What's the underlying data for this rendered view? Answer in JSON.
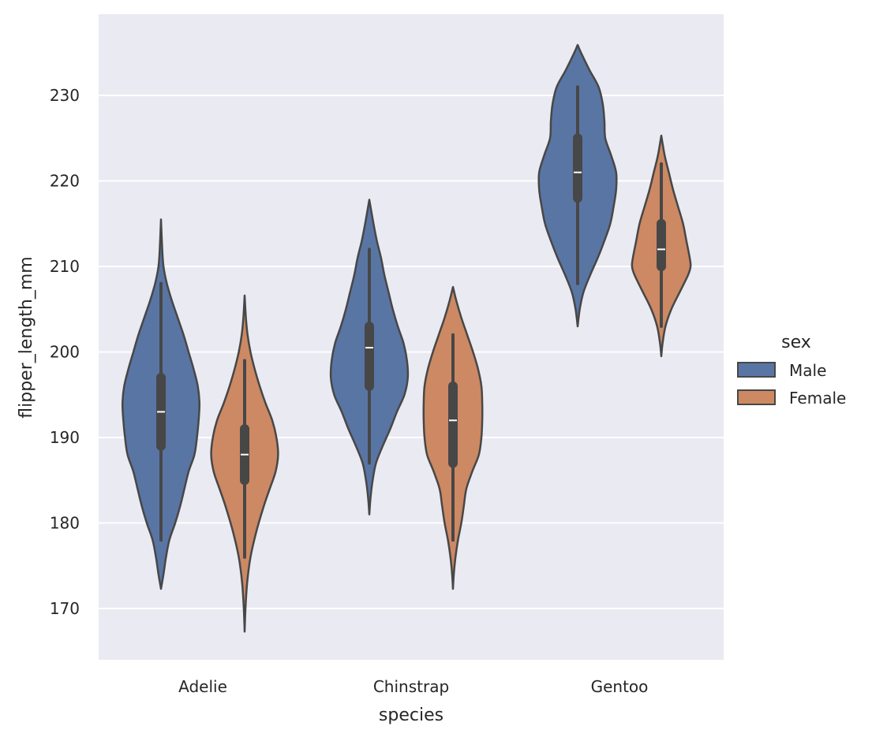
{
  "chart_data": {
    "type": "violin",
    "title": "",
    "xlabel": "species",
    "ylabel": "flipper_length_mm",
    "categories": [
      "Adelie",
      "Chinstrap",
      "Gentoo"
    ],
    "ylim": [
      164,
      239.5
    ],
    "yticks": [
      170,
      180,
      190,
      200,
      210,
      220,
      230
    ],
    "ytick_labels": [
      "170",
      "180",
      "190",
      "200",
      "210",
      "220",
      "230"
    ],
    "grid": true,
    "legend": {
      "title": "sex",
      "placement": "right",
      "entries": [
        {
          "label": "Male",
          "color": "#5975a4"
        },
        {
          "label": "Female",
          "color": "#cc8963"
        }
      ]
    },
    "series": [
      {
        "name": "Male",
        "color": "#5975a4",
        "violins": [
          {
            "category": "Adelie",
            "whisker": [
              178,
              208
            ],
            "q1": 189,
            "q3": 197,
            "median": 193,
            "density": [
              [
                172.3,
                0
              ],
              [
                174,
                0.3
              ],
              [
                176,
                0.6
              ],
              [
                178,
                1.0
              ],
              [
                180,
                1.7
              ],
              [
                182,
                2.3
              ],
              [
                184,
                2.8
              ],
              [
                186,
                3.3
              ],
              [
                188,
                4.0
              ],
              [
                190,
                4.3
              ],
              [
                192,
                4.5
              ],
              [
                194,
                4.6
              ],
              [
                196,
                4.4
              ],
              [
                198,
                3.9
              ],
              [
                200,
                3.3
              ],
              [
                202,
                2.7
              ],
              [
                204,
                2.0
              ],
              [
                206,
                1.3
              ],
              [
                208,
                0.7
              ],
              [
                210,
                0.3
              ],
              [
                212,
                0.15
              ],
              [
                215.5,
                0
              ]
            ]
          },
          {
            "category": "Chinstrap",
            "whisker": [
              187,
              212
            ],
            "q1": 196,
            "q3": 203,
            "median": 200.5,
            "density": [
              [
                181,
                0
              ],
              [
                183,
                0.15
              ],
              [
                185,
                0.4
              ],
              [
                187,
                0.8
              ],
              [
                189,
                1.6
              ],
              [
                191,
                2.5
              ],
              [
                193,
                3.3
              ],
              [
                195,
                4.2
              ],
              [
                197,
                4.6
              ],
              [
                199,
                4.5
              ],
              [
                201,
                4.1
              ],
              [
                203,
                3.4
              ],
              [
                205,
                2.8
              ],
              [
                207,
                2.3
              ],
              [
                209,
                1.8
              ],
              [
                211,
                1.4
              ],
              [
                213,
                0.9
              ],
              [
                215,
                0.5
              ],
              [
                217.8,
                0
              ]
            ]
          },
          {
            "category": "Gentoo",
            "whisker": [
              208,
              231
            ],
            "q1": 218,
            "q3": 225,
            "median": 221,
            "density": [
              [
                203,
                0
              ],
              [
                205,
                0.25
              ],
              [
                207,
                0.7
              ],
              [
                209,
                1.5
              ],
              [
                211,
                2.4
              ],
              [
                213,
                3.2
              ],
              [
                215,
                3.9
              ],
              [
                217,
                4.3
              ],
              [
                219,
                4.6
              ],
              [
                221,
                4.6
              ],
              [
                223,
                4.0
              ],
              [
                225,
                3.3
              ],
              [
                227,
                3.2
              ],
              [
                229,
                3.0
              ],
              [
                231,
                2.5
              ],
              [
                233,
                1.4
              ],
              [
                235,
                0.4
              ],
              [
                235.9,
                0
              ]
            ]
          }
        ]
      },
      {
        "name": "Female",
        "color": "#cc8963",
        "violins": [
          {
            "category": "Adelie",
            "whisker": [
              176,
              199
            ],
            "q1": 185,
            "q3": 191,
            "median": 188,
            "density": [
              [
                167.3,
                0
              ],
              [
                170,
                0.1
              ],
              [
                173,
                0.3
              ],
              [
                176,
                0.7
              ],
              [
                179,
                1.4
              ],
              [
                182,
                2.3
              ],
              [
                184,
                3.0
              ],
              [
                186,
                3.7
              ],
              [
                188,
                4.0
              ],
              [
                190,
                3.8
              ],
              [
                192,
                3.3
              ],
              [
                194,
                2.5
              ],
              [
                196,
                1.8
              ],
              [
                198,
                1.2
              ],
              [
                200,
                0.7
              ],
              [
                202,
                0.35
              ],
              [
                204,
                0.15
              ],
              [
                206.6,
                0
              ]
            ]
          },
          {
            "category": "Chinstrap",
            "whisker": [
              178,
              202
            ],
            "q1": 187,
            "q3": 196,
            "median": 192,
            "density": [
              [
                172.3,
                0
              ],
              [
                174,
                0.1
              ],
              [
                176,
                0.3
              ],
              [
                178,
                0.6
              ],
              [
                180,
                1.0
              ],
              [
                182,
                1.3
              ],
              [
                184,
                1.6
              ],
              [
                186,
                2.3
              ],
              [
                188,
                3.1
              ],
              [
                190,
                3.4
              ],
              [
                192,
                3.5
              ],
              [
                194,
                3.5
              ],
              [
                196,
                3.4
              ],
              [
                198,
                3.0
              ],
              [
                200,
                2.4
              ],
              [
                202,
                1.7
              ],
              [
                204,
                1.0
              ],
              [
                206,
                0.4
              ],
              [
                207.6,
                0
              ]
            ]
          },
          {
            "category": "Gentoo",
            "whisker": [
              203,
              222
            ],
            "q1": 210,
            "q3": 215,
            "median": 212,
            "density": [
              [
                199.5,
                0
              ],
              [
                201,
                0.15
              ],
              [
                203,
                0.5
              ],
              [
                205,
                1.2
              ],
              [
                207,
                2.2
              ],
              [
                209,
                3.2
              ],
              [
                210,
                3.5
              ],
              [
                211,
                3.4
              ],
              [
                213,
                3.0
              ],
              [
                215,
                2.6
              ],
              [
                217,
                2.0
              ],
              [
                219,
                1.4
              ],
              [
                221,
                0.9
              ],
              [
                223,
                0.4
              ],
              [
                225.3,
                0
              ]
            ]
          }
        ]
      }
    ]
  }
}
